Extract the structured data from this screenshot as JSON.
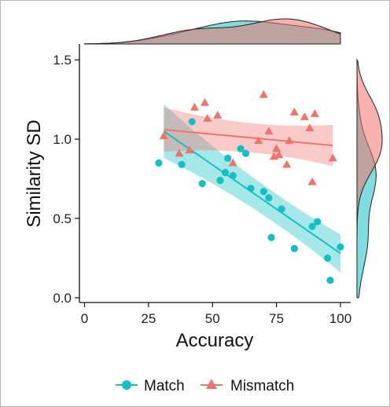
{
  "chart_data": {
    "type": "scatter",
    "xlabel": "Accuracy",
    "ylabel": "Similarity SD",
    "xlim": [
      -2,
      104
    ],
    "ylim": [
      -0.03,
      1.6
    ],
    "x_ticks": [
      0,
      25,
      50,
      75,
      100
    ],
    "y_ticks": [
      0.0,
      0.5,
      1.0,
      1.5
    ],
    "x_tick_labels": [
      "0",
      "25",
      "50",
      "75",
      "100"
    ],
    "y_tick_labels": [
      "0.0",
      "0.5",
      "1.0",
      "1.5"
    ],
    "grid": false,
    "legend_position": "bottom",
    "legend_entries": [
      "Match",
      "Mismatch"
    ],
    "colors": {
      "Match": "#16bfc4",
      "Mismatch": "#f0736b"
    },
    "series": [
      {
        "name": "Match",
        "marker": "circle",
        "points": [
          [
            29,
            0.85
          ],
          [
            38,
            0.84
          ],
          [
            42,
            1.11
          ],
          [
            46,
            0.72
          ],
          [
            53,
            0.74
          ],
          [
            55,
            0.79
          ],
          [
            56,
            0.88
          ],
          [
            58,
            0.77
          ],
          [
            61,
            0.94
          ],
          [
            63,
            0.91
          ],
          [
            65,
            0.69
          ],
          [
            70,
            0.67
          ],
          [
            72,
            0.63
          ],
          [
            73,
            0.38
          ],
          [
            77,
            0.56
          ],
          [
            82,
            0.31
          ],
          [
            89,
            0.45
          ],
          [
            91,
            0.48
          ],
          [
            95,
            0.25
          ],
          [
            96,
            0.11
          ],
          [
            100,
            0.32
          ]
        ],
        "fit": {
          "x_range": [
            31,
            100
          ],
          "y_start": 1.05,
          "y_end": 0.28,
          "ci_start": 0.17,
          "ci_mid": 0.05,
          "ci_end": 0.12
        }
      },
      {
        "name": "Mismatch",
        "marker": "triangle",
        "points": [
          [
            31,
            1.02
          ],
          [
            37,
            0.91
          ],
          [
            41,
            0.93
          ],
          [
            43,
            1.2
          ],
          [
            47,
            1.23
          ],
          [
            48,
            1.13
          ],
          [
            52,
            1.15
          ],
          [
            58,
            0.85
          ],
          [
            68,
            0.99
          ],
          [
            70,
            1.28
          ],
          [
            72,
            1.05
          ],
          [
            74,
            0.89
          ],
          [
            75,
            0.94
          ],
          [
            76,
            0.9
          ],
          [
            79,
            0.84
          ],
          [
            80,
            0.99
          ],
          [
            82,
            1.17
          ],
          [
            86,
            1.14
          ],
          [
            88,
            1.07
          ],
          [
            89,
            0.73
          ],
          [
            90,
            1.16
          ],
          [
            97,
            0.88
          ]
        ],
        "fit": {
          "x_range": [
            31,
            97
          ],
          "y_start": 1.06,
          "y_end": 0.96,
          "ci_start": 0.14,
          "ci_mid": 0.05,
          "ci_end": 0.13
        }
      }
    ]
  }
}
